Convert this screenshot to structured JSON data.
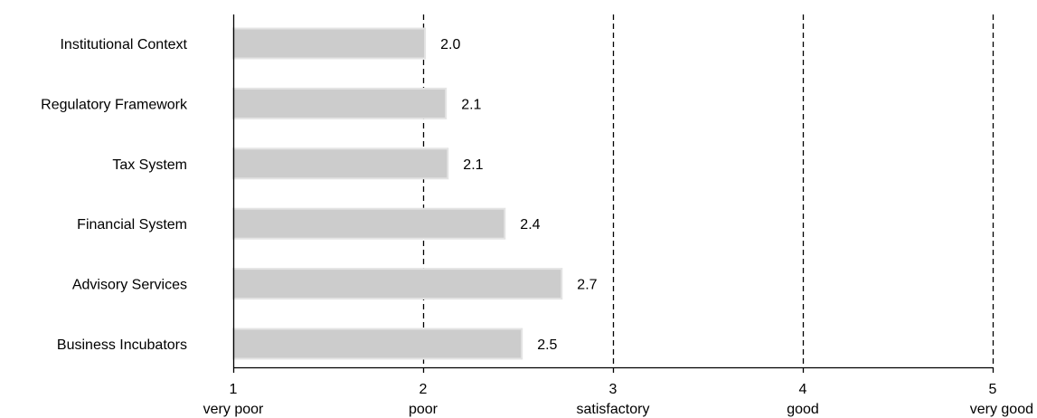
{
  "chart_data": {
    "type": "bar",
    "orientation": "horizontal",
    "categories": [
      "Institutional Context",
      "Regulatory Framework",
      "Tax System",
      "Financial System",
      "Advisory Services",
      "Business Incubators"
    ],
    "values": [
      2.0,
      2.1,
      2.1,
      2.4,
      2.7,
      2.5
    ],
    "value_labels": [
      "2.0",
      "2.1",
      "2.1",
      "2.4",
      "2.7",
      "2.5"
    ],
    "bar_ends": [
      2.01,
      2.12,
      2.13,
      2.43,
      2.73,
      2.52
    ],
    "xlim": [
      1,
      5
    ],
    "xticks": [
      1,
      2,
      3,
      4,
      5
    ],
    "xtick_labels": [
      "1",
      "2",
      "3",
      "4",
      "5"
    ],
    "xtick_words": [
      "very poor",
      "poor",
      "satisfactory",
      "good",
      "very good"
    ],
    "grid": "vertical dashed lines at 2, 3, 4, 5",
    "colors": {
      "bar_fill": "#cccccc",
      "bar_stroke": "#e4e4e4",
      "axis": "#000000",
      "grid": "#000000",
      "text": "#000000"
    },
    "title": "",
    "xlabel": "",
    "ylabel": ""
  }
}
